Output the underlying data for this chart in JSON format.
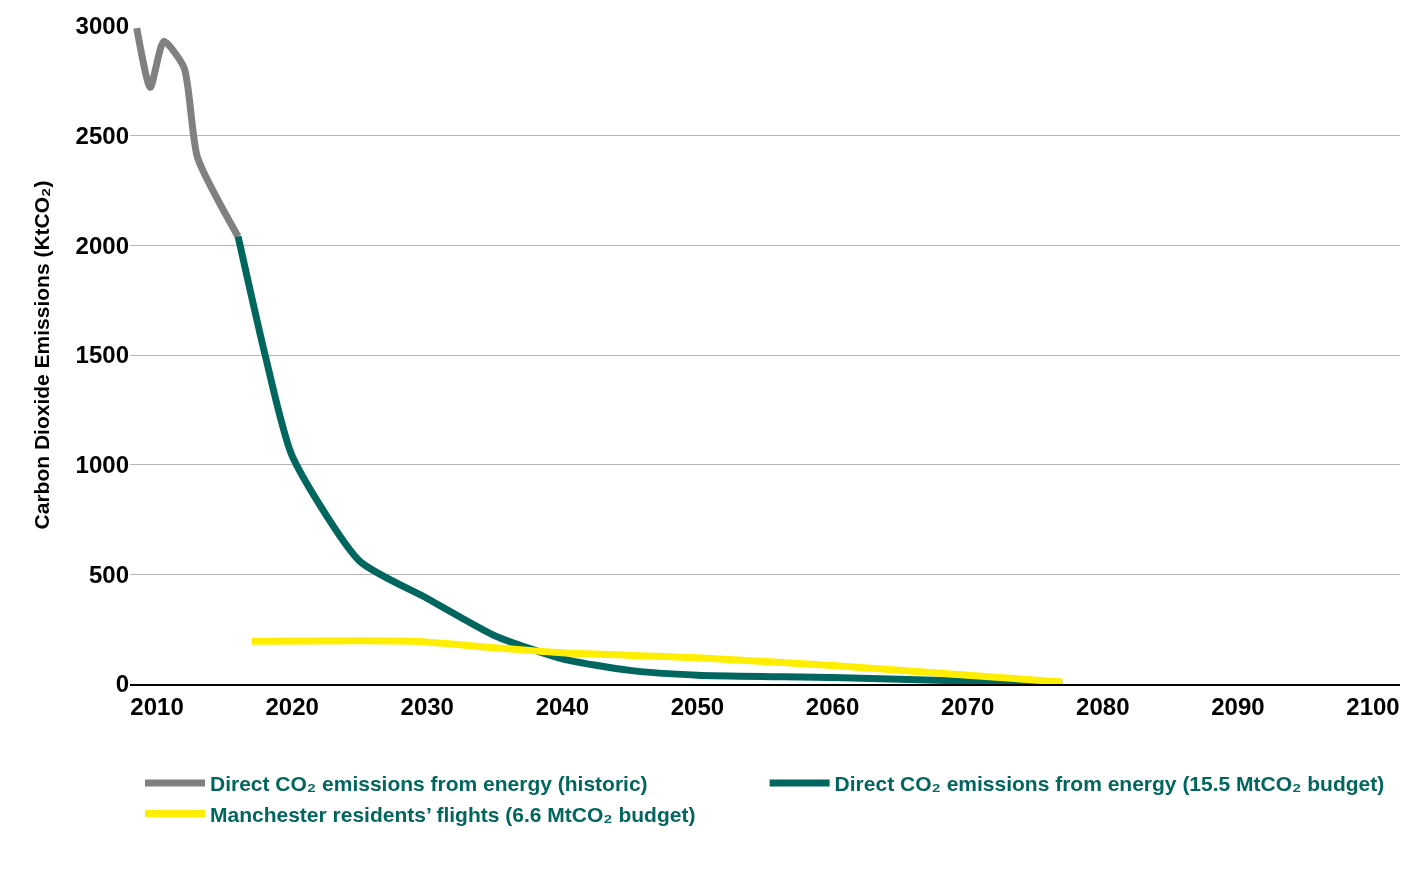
{
  "chart_data": {
    "type": "line",
    "ylabel": "Carbon Dioxide Emissions (KtCO₂)",
    "xlim": [
      2008,
      2102
    ],
    "xticks": [
      2010,
      2020,
      2030,
      2040,
      2050,
      2060,
      2070,
      2080,
      2090,
      2100
    ],
    "ylim": [
      0,
      3000
    ],
    "yticks": [
      0,
      500,
      1000,
      1500,
      2000,
      2500,
      3000
    ],
    "grid": "y",
    "legend": "bottom",
    "marker": "none",
    "line_style": "solid",
    "series": [
      {
        "name": "Direct CO₂ emissions from energy (historic)",
        "color": "#808080",
        "x": [
          2008.5,
          2009.5,
          2010.5,
          2012,
          2013,
          2016
        ],
        "values": [
          2990,
          2720,
          2930,
          2810,
          2400,
          2040
        ]
      },
      {
        "name": "Direct CO₂ emissions from energy (15.5 MtCO₂ budget)",
        "color": "#00665e",
        "x": [
          2016,
          2018,
          2020,
          2025,
          2030,
          2035,
          2040,
          2045,
          2050,
          2060,
          2070,
          2077
        ],
        "values": [
          2040,
          1500,
          1040,
          560,
          390,
          220,
          115,
          62,
          40,
          30,
          13,
          0
        ]
      },
      {
        "name": "Manchester residents’ flights (6.6 MtCO₂ budget)",
        "color": "#ffee00",
        "x": [
          2017,
          2029,
          2035,
          2040,
          2050,
          2060,
          2070,
          2077
        ],
        "values": [
          195,
          195,
          165,
          142,
          120,
          84,
          40,
          9
        ]
      }
    ]
  }
}
